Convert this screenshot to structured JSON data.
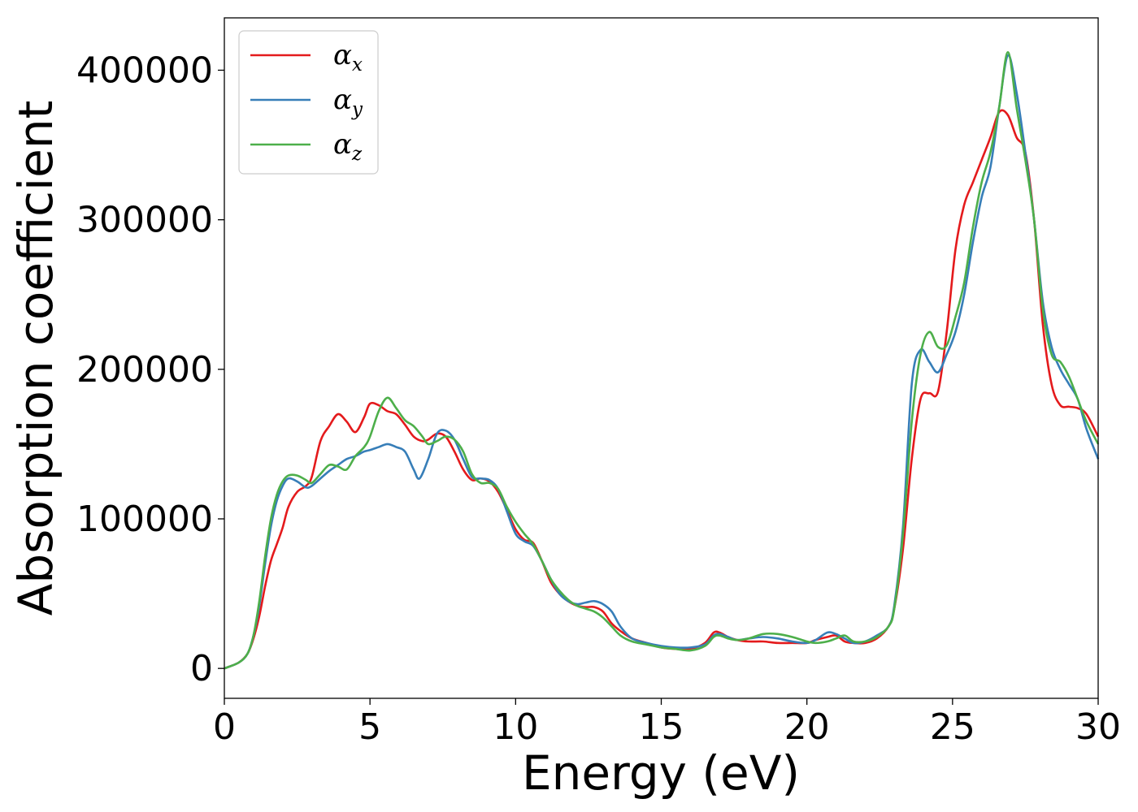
{
  "chart_data": {
    "type": "line",
    "xlabel": "Energy (eV)",
    "ylabel": "Absorption coefficient",
    "xlim": [
      0,
      30
    ],
    "ylim": [
      -20000,
      435000
    ],
    "xticks": [
      0,
      5,
      10,
      15,
      20,
      25,
      30
    ],
    "yticks": [
      0,
      100000,
      200000,
      300000,
      400000
    ],
    "grid": false,
    "legend": "top-left",
    "series": [
      {
        "name": "α_x",
        "color": "#e41a1c",
        "x": [
          0,
          0.5,
          0.8,
          1.0,
          1.2,
          1.4,
          1.6,
          1.8,
          2.0,
          2.2,
          2.5,
          2.8,
          3.0,
          3.3,
          3.6,
          3.9,
          4.2,
          4.5,
          4.8,
          5.0,
          5.3,
          5.6,
          5.9,
          6.2,
          6.5,
          6.8,
          7.0,
          7.3,
          7.6,
          7.9,
          8.2,
          8.5,
          8.8,
          9.1,
          9.4,
          9.7,
          10.0,
          10.3,
          10.6,
          10.9,
          11.2,
          11.5,
          11.8,
          12.1,
          12.4,
          12.7,
          13.0,
          13.3,
          13.6,
          14.0,
          14.5,
          15.0,
          15.5,
          16.0,
          16.5,
          16.8,
          17.0,
          17.3,
          17.6,
          18.0,
          18.5,
          19.0,
          19.5,
          20.0,
          20.3,
          20.7,
          21.0,
          21.3,
          21.6,
          22.0,
          22.4,
          22.8,
          23.0,
          23.3,
          23.6,
          23.9,
          24.2,
          24.5,
          24.8,
          25.1,
          25.4,
          25.7,
          26.0,
          26.3,
          26.6,
          26.9,
          27.2,
          27.5,
          27.8,
          28.1,
          28.4,
          28.7,
          29.0,
          29.3,
          29.6,
          30.0
        ],
        "y": [
          0,
          4000,
          10000,
          20000,
          35000,
          55000,
          72000,
          83000,
          94000,
          108000,
          118000,
          122000,
          128000,
          152000,
          162000,
          170000,
          165000,
          158000,
          168000,
          177000,
          176000,
          172000,
          170000,
          163000,
          155000,
          152000,
          153000,
          157000,
          155000,
          145000,
          133000,
          126000,
          127000,
          125000,
          118000,
          106000,
          93000,
          86000,
          84000,
          72000,
          58000,
          50000,
          45000,
          42000,
          41000,
          41000,
          38000,
          30000,
          25000,
          20000,
          17000,
          14000,
          13000,
          13000,
          17000,
          24000,
          24000,
          21000,
          19000,
          18000,
          18000,
          17000,
          17000,
          17000,
          19000,
          21000,
          22000,
          18000,
          17000,
          17000,
          20000,
          28000,
          40000,
          80000,
          140000,
          180000,
          184000,
          185000,
          225000,
          280000,
          310000,
          325000,
          340000,
          355000,
          372000,
          370000,
          355000,
          345000,
          300000,
          230000,
          190000,
          176000,
          175000,
          174000,
          170000,
          155000
        ]
      },
      {
        "name": "α_y",
        "color": "#377eb8",
        "x": [
          0,
          0.5,
          0.8,
          1.0,
          1.2,
          1.4,
          1.6,
          1.8,
          2.0,
          2.2,
          2.5,
          2.8,
          3.0,
          3.3,
          3.6,
          3.9,
          4.2,
          4.5,
          4.8,
          5.0,
          5.3,
          5.6,
          5.9,
          6.2,
          6.5,
          6.7,
          7.0,
          7.3,
          7.6,
          7.9,
          8.2,
          8.5,
          8.8,
          9.1,
          9.4,
          9.7,
          10.0,
          10.3,
          10.6,
          10.9,
          11.2,
          11.5,
          11.8,
          12.1,
          12.4,
          12.7,
          13.0,
          13.3,
          13.6,
          14.0,
          14.5,
          15.0,
          15.5,
          16.0,
          16.5,
          16.8,
          17.0,
          17.3,
          17.6,
          18.0,
          18.5,
          19.0,
          19.5,
          20.0,
          20.3,
          20.7,
          21.0,
          21.3,
          21.6,
          22.0,
          22.4,
          22.8,
          23.0,
          23.3,
          23.6,
          23.9,
          24.2,
          24.5,
          24.8,
          25.1,
          25.4,
          25.7,
          26.0,
          26.3,
          26.6,
          26.9,
          27.2,
          27.5,
          27.8,
          28.1,
          28.4,
          28.7,
          29.0,
          29.3,
          29.6,
          30.0
        ],
        "y": [
          0,
          4000,
          10000,
          22000,
          42000,
          70000,
          95000,
          112000,
          122000,
          127000,
          125000,
          121000,
          122000,
          127000,
          132000,
          136000,
          140000,
          142000,
          145000,
          146000,
          148000,
          150000,
          148000,
          145000,
          133000,
          127000,
          140000,
          157000,
          159000,
          153000,
          140000,
          128000,
          127000,
          126000,
          120000,
          105000,
          90000,
          85000,
          82000,
          72000,
          60000,
          50000,
          45000,
          43000,
          44000,
          45000,
          43000,
          38000,
          28000,
          20000,
          17000,
          15000,
          14000,
          14000,
          16000,
          22000,
          23000,
          21000,
          19000,
          20000,
          21000,
          20000,
          18000,
          17000,
          19000,
          24000,
          23000,
          20000,
          17000,
          18000,
          22000,
          28000,
          42000,
          95000,
          190000,
          213000,
          205000,
          198000,
          210000,
          225000,
          250000,
          285000,
          315000,
          335000,
          375000,
          410000,
          385000,
          345000,
          300000,
          245000,
          215000,
          200000,
          190000,
          180000,
          160000,
          140000
        ]
      },
      {
        "name": "α_z",
        "color": "#4daf4a",
        "x": [
          0,
          0.5,
          0.8,
          1.0,
          1.2,
          1.4,
          1.6,
          1.8,
          2.0,
          2.2,
          2.5,
          2.8,
          3.0,
          3.3,
          3.6,
          3.9,
          4.2,
          4.5,
          4.8,
          5.0,
          5.3,
          5.6,
          5.9,
          6.2,
          6.5,
          6.8,
          7.0,
          7.3,
          7.6,
          7.9,
          8.2,
          8.5,
          8.8,
          9.1,
          9.4,
          9.7,
          10.0,
          10.3,
          10.6,
          10.9,
          11.2,
          11.5,
          11.8,
          12.1,
          12.4,
          12.7,
          13.0,
          13.3,
          13.6,
          14.0,
          14.5,
          15.0,
          15.5,
          16.0,
          16.5,
          16.8,
          17.0,
          17.3,
          17.6,
          18.0,
          18.5,
          19.0,
          19.5,
          20.0,
          20.3,
          20.7,
          21.0,
          21.3,
          21.6,
          22.0,
          22.4,
          22.8,
          23.0,
          23.3,
          23.6,
          23.9,
          24.2,
          24.5,
          24.8,
          25.1,
          25.4,
          25.7,
          26.0,
          26.3,
          26.6,
          26.9,
          27.2,
          27.5,
          27.8,
          28.1,
          28.4,
          28.7,
          29.0,
          29.3,
          29.6,
          30.0
        ],
        "y": [
          0,
          4000,
          10000,
          22000,
          45000,
          75000,
          100000,
          116000,
          125000,
          129000,
          129000,
          126000,
          124000,
          130000,
          136000,
          135000,
          133000,
          142000,
          148000,
          155000,
          172000,
          181000,
          174000,
          166000,
          162000,
          155000,
          150000,
          152000,
          155000,
          153000,
          145000,
          130000,
          124000,
          124000,
          120000,
          108000,
          98000,
          90000,
          83000,
          72000,
          60000,
          52000,
          46000,
          42000,
          40000,
          38000,
          34000,
          28000,
          22000,
          18000,
          16000,
          14000,
          13000,
          12000,
          15000,
          21000,
          22000,
          20000,
          19000,
          20000,
          23000,
          23000,
          21000,
          18000,
          17000,
          18000,
          20000,
          22000,
          18000,
          18000,
          21000,
          28000,
          40000,
          90000,
          165000,
          210000,
          225000,
          215000,
          216000,
          235000,
          258000,
          295000,
          325000,
          345000,
          375000,
          412000,
          375000,
          340000,
          300000,
          240000,
          210000,
          205000,
          195000,
          180000,
          165000,
          150000
        ]
      }
    ]
  }
}
